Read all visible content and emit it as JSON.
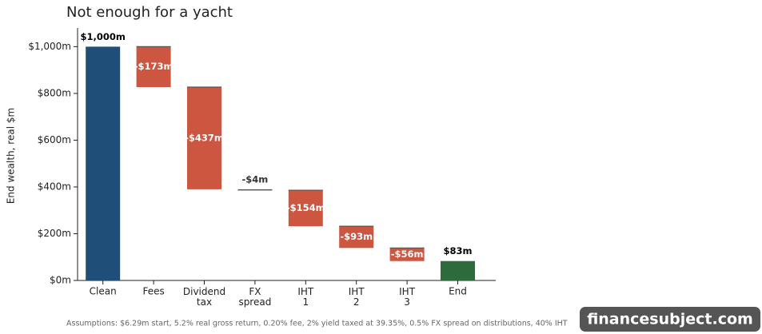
{
  "chart_data": {
    "type": "waterfall",
    "title": "Not enough for a yacht",
    "ylabel": "End wealth, real $m",
    "categories": [
      "Clean",
      "Fees",
      "Dividend tax",
      "FX spread",
      "IHT 1",
      "IHT 2",
      "IHT 3",
      "End"
    ],
    "measures": [
      "absolute",
      "relative",
      "relative",
      "relative",
      "relative",
      "relative",
      "relative",
      "total"
    ],
    "values": [
      1000,
      -173,
      -437,
      -4,
      -154,
      -93,
      -56,
      83
    ],
    "value_labels": [
      "$1,000m",
      "-$173m",
      "-$437m",
      "-$4m",
      "-$154m",
      "-$93m",
      "-$56m",
      "$83m"
    ],
    "colors": [
      "#1f4e79",
      "#cc563f",
      "#cc563f",
      "#cc563f",
      "#cc563f",
      "#cc563f",
      "#cc563f",
      "#2e6b3c"
    ],
    "ylim": [
      0,
      1080
    ],
    "yticks": [
      {
        "value": 0,
        "label": "$0m"
      },
      {
        "value": 200,
        "label": "$200m"
      },
      {
        "value": 400,
        "label": "$400m"
      },
      {
        "value": 600,
        "label": "$600m"
      },
      {
        "value": 800,
        "label": "$800m"
      },
      {
        "value": 1000,
        "label": "$1,000m"
      }
    ],
    "grid": false,
    "footnote": "Assumptions: $6.29m start, 5.2% real gross return, 0.20% fee, 2% yield taxed at 39.35%, 0.5% FX spread on distributions, 40% IHT",
    "watermark": "financesubject.com"
  }
}
